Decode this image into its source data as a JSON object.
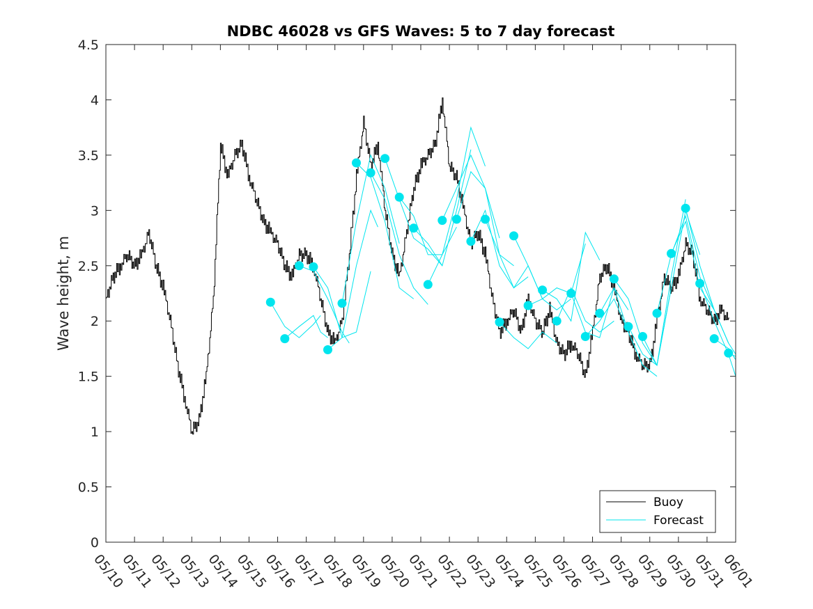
{
  "chart_data": {
    "type": "line",
    "title": "NDBC 46028 vs GFS Waves: 5 to 7 day forecast",
    "xlabel": "",
    "ylabel": "Wave height, m",
    "x_axis_type": "date",
    "xlim": [
      "05/10",
      "06/01"
    ],
    "ylim": [
      0,
      4.5
    ],
    "x_tick_labels": [
      "05/10",
      "05/11",
      "05/12",
      "05/13",
      "05/14",
      "05/15",
      "05/16",
      "05/17",
      "05/18",
      "05/19",
      "05/20",
      "05/21",
      "05/22",
      "05/23",
      "05/24",
      "05/25",
      "05/26",
      "05/27",
      "05/28",
      "05/29",
      "05/30",
      "05/31",
      "06/01"
    ],
    "y_ticks": [
      0,
      0.5,
      1,
      1.5,
      2,
      2.5,
      3,
      3.5,
      4,
      4.5
    ],
    "y_tick_labels": [
      "0",
      "0.5",
      "1",
      "1.5",
      "2",
      "2.5",
      "3",
      "3.5",
      "4",
      "4.5"
    ],
    "grid": false,
    "legend": {
      "position": "bottom-right",
      "entries": [
        "Buoy",
        "Forecast"
      ]
    },
    "colors": {
      "buoy": "#000000",
      "forecast": "#00e5ee"
    },
    "series": [
      {
        "name": "Buoy",
        "x": [
          "05/10 00:00",
          "05/10 06:00",
          "05/10 12:00",
          "05/10 18:00",
          "05/11 00:00",
          "05/11 06:00",
          "05/11 12:00",
          "05/11 18:00",
          "05/12 00:00",
          "05/12 06:00",
          "05/12 12:00",
          "05/12 18:00",
          "05/13 00:00",
          "05/13 06:00",
          "05/13 12:00",
          "05/13 18:00",
          "05/14 00:00",
          "05/14 06:00",
          "05/14 12:00",
          "05/14 18:00",
          "05/15 00:00",
          "05/15 06:00",
          "05/15 12:00",
          "05/15 18:00",
          "05/16 00:00",
          "05/16 06:00",
          "05/16 12:00",
          "05/16 18:00",
          "05/17 00:00",
          "05/17 06:00",
          "05/17 12:00",
          "05/17 18:00",
          "05/18 00:00",
          "05/18 06:00",
          "05/18 12:00",
          "05/18 18:00",
          "05/19 00:00",
          "05/19 06:00",
          "05/19 12:00",
          "05/19 18:00",
          "05/20 00:00",
          "05/20 06:00",
          "05/20 12:00",
          "05/20 18:00",
          "05/21 00:00",
          "05/21 06:00",
          "05/21 12:00",
          "05/21 18:00",
          "05/22 00:00",
          "05/22 06:00",
          "05/22 12:00",
          "05/22 18:00",
          "05/23 00:00",
          "05/23 06:00",
          "05/23 12:00",
          "05/23 18:00",
          "05/24 00:00",
          "05/24 06:00",
          "05/24 12:00",
          "05/24 18:00",
          "05/25 00:00",
          "05/25 06:00",
          "05/25 12:00",
          "05/25 18:00",
          "05/26 00:00",
          "05/26 06:00",
          "05/26 12:00",
          "05/26 18:00",
          "05/27 00:00",
          "05/27 06:00",
          "05/27 12:00",
          "05/27 18:00",
          "05/28 00:00",
          "05/28 06:00",
          "05/28 12:00",
          "05/28 18:00",
          "05/29 00:00",
          "05/29 06:00",
          "05/29 12:00",
          "05/29 18:00",
          "05/30 00:00",
          "05/30 06:00",
          "05/30 12:00",
          "05/30 18:00",
          "05/31 00:00",
          "05/31 06:00",
          "05/31 12:00",
          "05/31 18:00"
        ],
        "y": [
          2.2,
          2.4,
          2.5,
          2.6,
          2.5,
          2.6,
          2.8,
          2.5,
          2.3,
          2.0,
          1.6,
          1.3,
          1.0,
          1.1,
          1.5,
          2.2,
          3.6,
          3.3,
          3.5,
          3.6,
          3.3,
          3.1,
          2.9,
          2.8,
          2.7,
          2.5,
          2.4,
          2.6,
          2.6,
          2.5,
          2.2,
          1.9,
          1.8,
          2.0,
          2.6,
          3.3,
          3.8,
          3.4,
          3.6,
          3.0,
          2.6,
          2.4,
          2.8,
          3.2,
          3.4,
          3.5,
          3.6,
          4.0,
          3.4,
          3.3,
          3.0,
          2.7,
          2.8,
          2.6,
          2.2,
          1.9,
          2.0,
          2.1,
          1.9,
          2.2,
          2.0,
          1.9,
          2.1,
          1.8,
          1.7,
          1.8,
          1.7,
          1.5,
          1.9,
          2.4,
          2.5,
          2.3,
          2.0,
          1.9,
          1.7,
          1.6,
          1.6,
          2.0,
          2.4,
          2.3,
          2.4,
          2.7,
          2.6,
          2.2,
          2.1,
          2.0,
          2.1,
          2.0
        ]
      },
      {
        "name": "Forecast",
        "traces": [
          {
            "x": [
              "05/15 18:00",
              "05/16 06:00",
              "05/16 18:00",
              "05/17 06:00",
              "05/17 12:00"
            ],
            "y": [
              2.17,
              1.95,
              1.85,
              1.97,
              2.05
            ]
          },
          {
            "x": [
              "05/16 06:00",
              "05/16 18:00",
              "05/17 06:00",
              "05/17 12:00",
              "05/17 18:00"
            ],
            "y": [
              1.84,
              1.95,
              2.05,
              1.9,
              1.85
            ]
          },
          {
            "x": [
              "05/16 18:00",
              "05/17 06:00",
              "05/17 18:00",
              "05/18 06:00",
              "05/18 12:00"
            ],
            "y": [
              2.5,
              2.45,
              2.2,
              1.9,
              1.8
            ]
          },
          {
            "x": [
              "05/17 06:00",
              "05/17 18:00",
              "05/18 06:00",
              "05/18 18:00",
              "05/19 06:00"
            ],
            "y": [
              2.49,
              2.3,
              1.85,
              1.9,
              2.45
            ]
          },
          {
            "x": [
              "05/17 18:00",
              "05/18 06:00",
              "05/18 18:00",
              "05/19 06:00",
              "05/19 12:00"
            ],
            "y": [
              1.74,
              1.85,
              2.5,
              3.0,
              2.85
            ]
          },
          {
            "x": [
              "05/18 06:00",
              "05/18 18:00",
              "05/19 06:00",
              "05/19 18:00",
              "05/20 06:00"
            ],
            "y": [
              2.16,
              2.9,
              3.5,
              3.2,
              2.7
            ]
          },
          {
            "x": [
              "05/18 18:00",
              "05/19 06:00",
              "05/19 18:00",
              "05/20 06:00",
              "05/20 18:00"
            ],
            "y": [
              3.43,
              3.3,
              2.9,
              2.3,
              2.2
            ]
          },
          {
            "x": [
              "05/19 06:00",
              "05/19 18:00",
              "05/20 06:00",
              "05/20 18:00",
              "05/21 06:00"
            ],
            "y": [
              3.34,
              3.1,
              2.6,
              2.3,
              2.15
            ]
          },
          {
            "x": [
              "05/19 18:00",
              "05/20 06:00",
              "05/20 18:00",
              "05/21 06:00",
              "05/21 18:00"
            ],
            "y": [
              3.47,
              3.1,
              2.75,
              2.65,
              2.5
            ]
          },
          {
            "x": [
              "05/20 06:00",
              "05/20 18:00",
              "05/21 06:00",
              "05/21 18:00",
              "05/22 06:00"
            ],
            "y": [
              3.12,
              2.95,
              2.6,
              2.6,
              2.85
            ]
          },
          {
            "x": [
              "05/20 18:00",
              "05/21 06:00",
              "05/21 18:00",
              "05/22 06:00",
              "05/22 18:00"
            ],
            "y": [
              2.84,
              2.7,
              2.5,
              3.0,
              3.55
            ]
          },
          {
            "x": [
              "05/21 06:00",
              "05/21 18:00",
              "05/22 06:00",
              "05/22 18:00",
              "05/23 06:00"
            ],
            "y": [
              2.33,
              2.6,
              3.1,
              3.75,
              3.4
            ]
          },
          {
            "x": [
              "05/21 18:00",
              "05/22 06:00",
              "05/22 18:00",
              "05/23 06:00",
              "05/23 18:00"
            ],
            "y": [
              2.91,
              3.2,
              3.5,
              3.2,
              2.75
            ]
          },
          {
            "x": [
              "05/22 06:00",
              "05/22 18:00",
              "05/23 06:00",
              "05/23 18:00",
              "05/24 06:00"
            ],
            "y": [
              2.92,
              3.35,
              3.2,
              2.6,
              2.5
            ]
          },
          {
            "x": [
              "05/22 18:00",
              "05/23 06:00",
              "05/23 18:00",
              "05/24 06:00",
              "05/24 18:00"
            ],
            "y": [
              2.72,
              3.0,
              2.5,
              2.3,
              2.4
            ]
          },
          {
            "x": [
              "05/23 06:00",
              "05/23 18:00",
              "05/24 06:00",
              "05/24 18:00",
              "05/25 06:00"
            ],
            "y": [
              2.92,
              2.6,
              2.3,
              2.5,
              2.2
            ]
          },
          {
            "x": [
              "05/23 18:00",
              "05/24 06:00",
              "05/24 18:00",
              "05/25 06:00",
              "05/25 18:00"
            ],
            "y": [
              1.99,
              1.85,
              1.75,
              1.9,
              1.8
            ]
          },
          {
            "x": [
              "05/24 06:00",
              "05/24 18:00",
              "05/25 06:00",
              "05/25 18:00",
              "05/26 06:00"
            ],
            "y": [
              2.77,
              2.5,
              2.2,
              2.1,
              2.2
            ]
          },
          {
            "x": [
              "05/24 18:00",
              "05/25 06:00",
              "05/25 18:00",
              "05/26 06:00",
              "05/26 18:00"
            ],
            "y": [
              2.14,
              2.2,
              2.3,
              2.25,
              2.7
            ]
          },
          {
            "x": [
              "05/25 06:00",
              "05/25 18:00",
              "05/26 06:00",
              "05/26 18:00",
              "05/27 06:00"
            ],
            "y": [
              2.28,
              2.2,
              2.0,
              2.8,
              2.55
            ]
          },
          {
            "x": [
              "05/25 18:00",
              "05/26 06:00",
              "05/26 18:00",
              "05/27 06:00",
              "05/27 18:00"
            ],
            "y": [
              2.0,
              2.3,
              2.0,
              1.9,
              2.0
            ]
          },
          {
            "x": [
              "05/26 06:00",
              "05/26 18:00",
              "05/27 06:00",
              "05/27 18:00",
              "05/28 06:00"
            ],
            "y": [
              2.25,
              1.9,
              1.85,
              2.3,
              2.1
            ]
          },
          {
            "x": [
              "05/26 18:00",
              "05/27 06:00",
              "05/27 18:00",
              "05/28 06:00",
              "05/28 18:00"
            ],
            "y": [
              1.86,
              2.0,
              2.2,
              1.9,
              1.6
            ]
          },
          {
            "x": [
              "05/27 06:00",
              "05/27 18:00",
              "05/28 06:00",
              "05/28 18:00",
              "05/29 06:00"
            ],
            "y": [
              2.07,
              2.3,
              1.9,
              1.6,
              1.5
            ]
          },
          {
            "x": [
              "05/27 18:00",
              "05/28 06:00",
              "05/28 18:00",
              "05/29 06:00",
              "05/29 18:00"
            ],
            "y": [
              2.38,
              2.2,
              1.8,
              1.6,
              2.3
            ]
          },
          {
            "x": [
              "05/28 06:00",
              "05/28 18:00",
              "05/29 06:00",
              "05/29 18:00",
              "05/30 06:00"
            ],
            "y": [
              1.95,
              1.7,
              1.6,
              2.4,
              3.1
            ]
          },
          {
            "x": [
              "05/28 18:00",
              "05/29 06:00",
              "05/29 18:00",
              "05/30 06:00",
              "05/30 18:00"
            ],
            "y": [
              1.86,
              1.6,
              2.3,
              3.0,
              2.6
            ]
          },
          {
            "x": [
              "05/29 06:00",
              "05/29 18:00",
              "05/30 06:00",
              "05/30 18:00",
              "05/31 06:00"
            ],
            "y": [
              2.07,
              2.6,
              2.95,
              2.4,
              2.1
            ]
          },
          {
            "x": [
              "05/29 18:00",
              "05/30 06:00",
              "05/30 18:00",
              "05/31 06:00",
              "05/31 18:00"
            ],
            "y": [
              2.61,
              2.9,
              2.3,
              2.1,
              1.8
            ]
          },
          {
            "x": [
              "05/30 06:00",
              "05/30 18:00",
              "05/31 06:00",
              "05/31 18:00",
              "06/01 00:00"
            ],
            "y": [
              3.02,
              2.5,
              2.1,
              1.8,
              1.7
            ]
          },
          {
            "x": [
              "05/30 18:00",
              "05/31 06:00",
              "05/31 18:00",
              "06/01 00:00"
            ],
            "y": [
              2.34,
              2.0,
              1.7,
              1.5
            ]
          },
          {
            "x": [
              "05/31 06:00",
              "05/31 18:00",
              "06/01 00:00"
            ],
            "y": [
              1.84,
              1.75,
              1.65
            ]
          },
          {
            "x": [
              "05/31 18:00",
              "06/01 00:00"
            ],
            "y": [
              1.71,
              1.68
            ]
          }
        ],
        "markers": {
          "x": [
            "05/15 18:00",
            "05/16 06:00",
            "05/16 18:00",
            "05/17 06:00",
            "05/17 18:00",
            "05/18 06:00",
            "05/18 18:00",
            "05/19 06:00",
            "05/19 18:00",
            "05/20 06:00",
            "05/20 18:00",
            "05/21 06:00",
            "05/21 18:00",
            "05/22 06:00",
            "05/22 18:00",
            "05/23 06:00",
            "05/23 18:00",
            "05/24 06:00",
            "05/24 18:00",
            "05/25 06:00",
            "05/25 18:00",
            "05/26 06:00",
            "05/26 18:00",
            "05/27 06:00",
            "05/27 18:00",
            "05/28 06:00",
            "05/28 18:00",
            "05/29 06:00",
            "05/29 18:00",
            "05/30 06:00",
            "05/30 18:00",
            "05/31 06:00",
            "05/31 18:00"
          ],
          "y": [
            2.17,
            1.84,
            2.5,
            2.49,
            1.74,
            2.16,
            3.43,
            3.34,
            3.47,
            3.12,
            2.84,
            2.33,
            2.91,
            2.92,
            2.72,
            2.92,
            1.99,
            2.77,
            2.14,
            2.28,
            2.0,
            2.25,
            1.86,
            2.07,
            2.38,
            1.95,
            1.86,
            2.07,
            2.61,
            3.02,
            2.34,
            1.84,
            1.71
          ]
        }
      }
    ]
  }
}
